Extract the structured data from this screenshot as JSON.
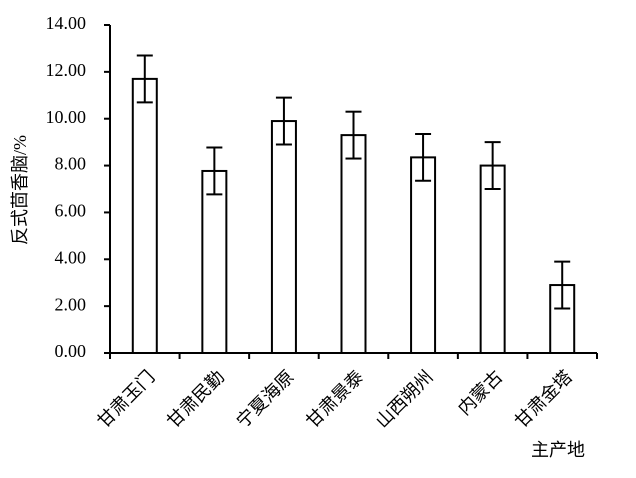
{
  "chart_data": {
    "type": "bar",
    "y_label": "反式茴香脑/%",
    "x_label": "主产地",
    "categories": [
      "甘肃玉门",
      "甘肃民勤",
      "宁夏海原",
      "甘肃景泰",
      "山西朔州",
      "内蒙古",
      "甘肃金塔"
    ],
    "values": [
      11.7,
      7.77,
      9.9,
      9.3,
      8.35,
      8.0,
      2.9
    ],
    "errors": [
      1.0,
      1.0,
      1.0,
      1.0,
      1.0,
      1.0,
      1.0
    ],
    "color": "#ffffff",
    "ylim": [
      0,
      14
    ],
    "yticks": [
      {
        "value": 0,
        "label": "0.00"
      },
      {
        "value": 2,
        "label": "2.00"
      },
      {
        "value": 4,
        "label": "4.00"
      },
      {
        "value": 6,
        "label": "6.00"
      },
      {
        "value": 8,
        "label": "8.00"
      },
      {
        "value": 10,
        "label": "10.00"
      },
      {
        "value": 12,
        "label": "12.00"
      },
      {
        "value": 14,
        "label": "14.00"
      }
    ],
    "grid": false
  }
}
